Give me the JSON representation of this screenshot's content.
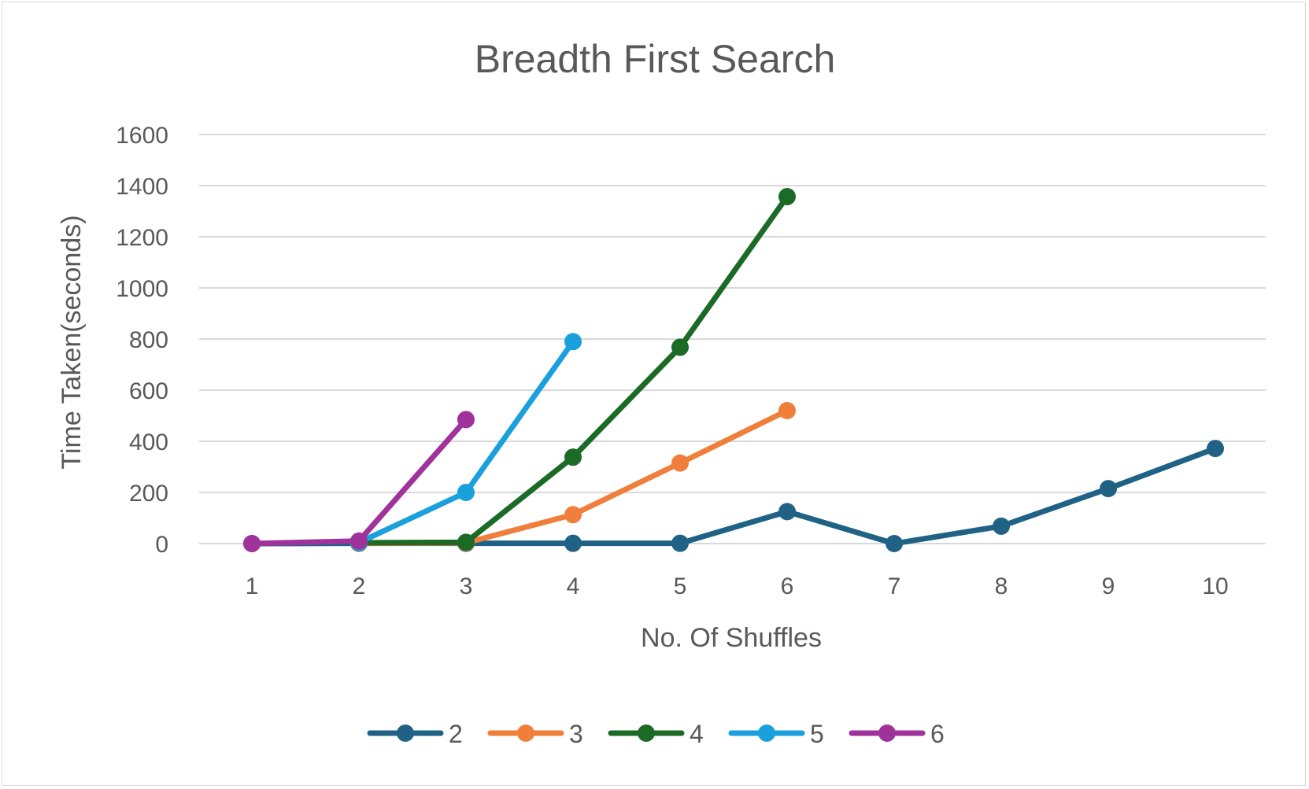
{
  "chart_data": {
    "type": "line",
    "title": "Breadth First Search",
    "xlabel": "No. Of Shuffles",
    "ylabel": "Time Taken(seconds)",
    "ylim": [
      0,
      1600
    ],
    "y_ticks": [
      0,
      200,
      400,
      600,
      800,
      1000,
      1200,
      1400,
      1600
    ],
    "y_tick_labels": [
      "0",
      "200",
      "400",
      "600",
      "800",
      "1000",
      "1200",
      "1400",
      "1600"
    ],
    "categories": [
      "1",
      "2",
      "3",
      "4",
      "5",
      "6",
      "7",
      "8",
      "9",
      "10"
    ],
    "grid": true,
    "legend_position": "bottom",
    "series": [
      {
        "name": "2",
        "color": "#1f6285",
        "values": [
          0,
          1,
          1,
          1,
          1,
          125,
          0,
          68,
          215,
          372
        ]
      },
      {
        "name": "3",
        "color": "#f07f3c",
        "values": [
          null,
          1,
          3,
          113,
          315,
          520,
          null,
          null,
          null,
          null
        ]
      },
      {
        "name": "4",
        "color": "#1b6b27",
        "values": [
          null,
          3,
          5,
          338,
          768,
          1357,
          null,
          null,
          null,
          null
        ]
      },
      {
        "name": "5",
        "color": "#1aa0dc",
        "values": [
          null,
          4,
          200,
          790,
          null,
          null,
          null,
          null,
          null,
          null
        ]
      },
      {
        "name": "6",
        "color": "#a0329c",
        "values": [
          0,
          10,
          485,
          null,
          null,
          null,
          null,
          null,
          null,
          null
        ]
      }
    ]
  }
}
